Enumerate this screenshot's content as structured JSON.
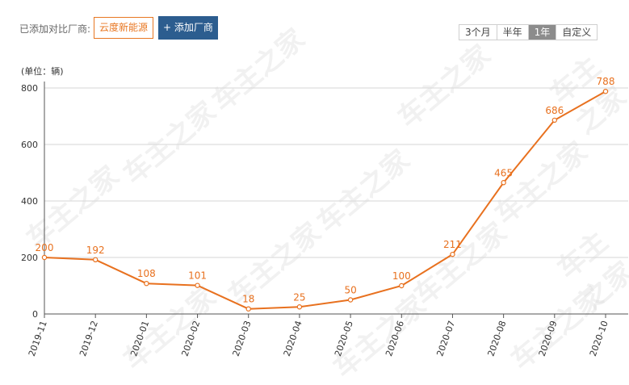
{
  "toolbar": {
    "compare_label": "已添加对比厂商:",
    "selected_brand": "云度新能源",
    "add_button": "+ 添加厂商",
    "ranges": [
      "3个月",
      "半年",
      "1年",
      "自定义"
    ],
    "active_range": "1年"
  },
  "watermark_text": "车主之家",
  "chart_data": {
    "type": "line",
    "unit_label": "(单位：辆)",
    "categories": [
      "2019-11",
      "2019-12",
      "2020-01",
      "2020-02",
      "2020-03",
      "2020-04",
      "2020-05",
      "2020-06",
      "2020-07",
      "2020-08",
      "2020-09",
      "2020-10"
    ],
    "series": [
      {
        "values": [
          200,
          192,
          108,
          101,
          18,
          25,
          50,
          100,
          211,
          465,
          686,
          788
        ]
      }
    ],
    "ylim": [
      0,
      800
    ],
    "yticks": [
      0,
      200,
      400,
      600,
      800
    ],
    "grid": true,
    "line_color": "#e8711f",
    "title": "",
    "xlabel": "",
    "ylabel": ""
  }
}
